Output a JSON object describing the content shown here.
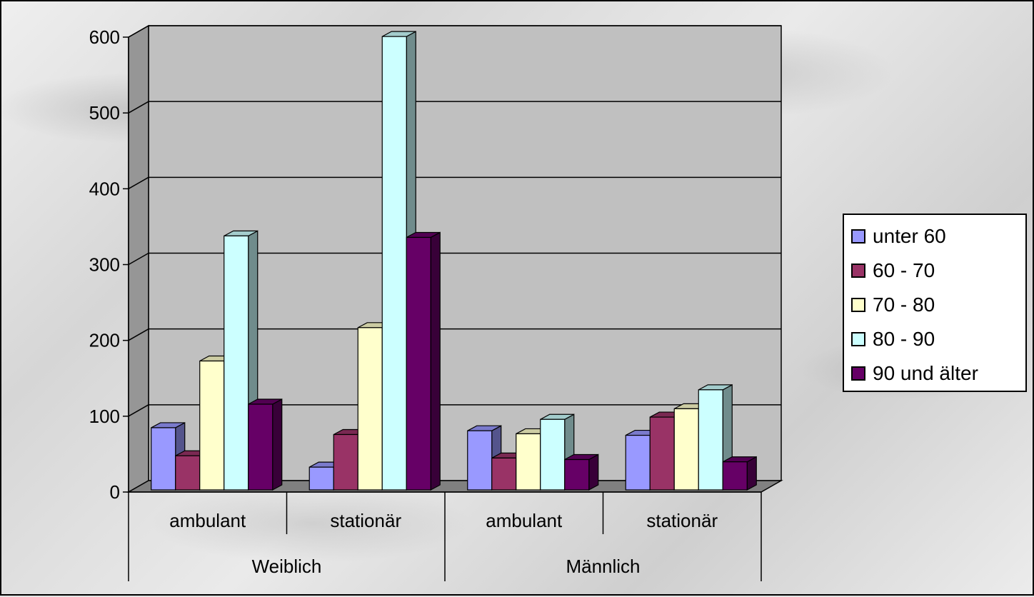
{
  "chart_data": {
    "type": "bar",
    "style": "3d clustered column",
    "groups": [
      {
        "label": "Weiblich",
        "categories": [
          "ambulant",
          "stationär"
        ]
      },
      {
        "label": "Männlich",
        "categories": [
          "ambulant",
          "stationär"
        ]
      }
    ],
    "categories": [
      "ambulant",
      "stationär",
      "ambulant",
      "stationär"
    ],
    "series": [
      {
        "name": "unter 60",
        "color": "#9999ff",
        "values": [
          82,
          30,
          78,
          72
        ]
      },
      {
        "name": "60 - 70",
        "color": "#993366",
        "values": [
          45,
          73,
          42,
          96
        ]
      },
      {
        "name": "70 - 80",
        "color": "#ffffcc",
        "values": [
          170,
          214,
          74,
          107
        ]
      },
      {
        "name": "80 - 90",
        "color": "#ccffff",
        "values": [
          335,
          598,
          93,
          132
        ]
      },
      {
        "name": "90 und älter",
        "color": "#660066",
        "values": [
          113,
          333,
          40,
          37
        ]
      }
    ],
    "ylim": [
      0,
      600
    ],
    "yticks": [
      "0",
      "100",
      "200",
      "300",
      "400",
      "500",
      "600"
    ],
    "grid": true,
    "legend_position": "right",
    "wall_color": "#c0c0c0",
    "floor_color": "#808080"
  }
}
